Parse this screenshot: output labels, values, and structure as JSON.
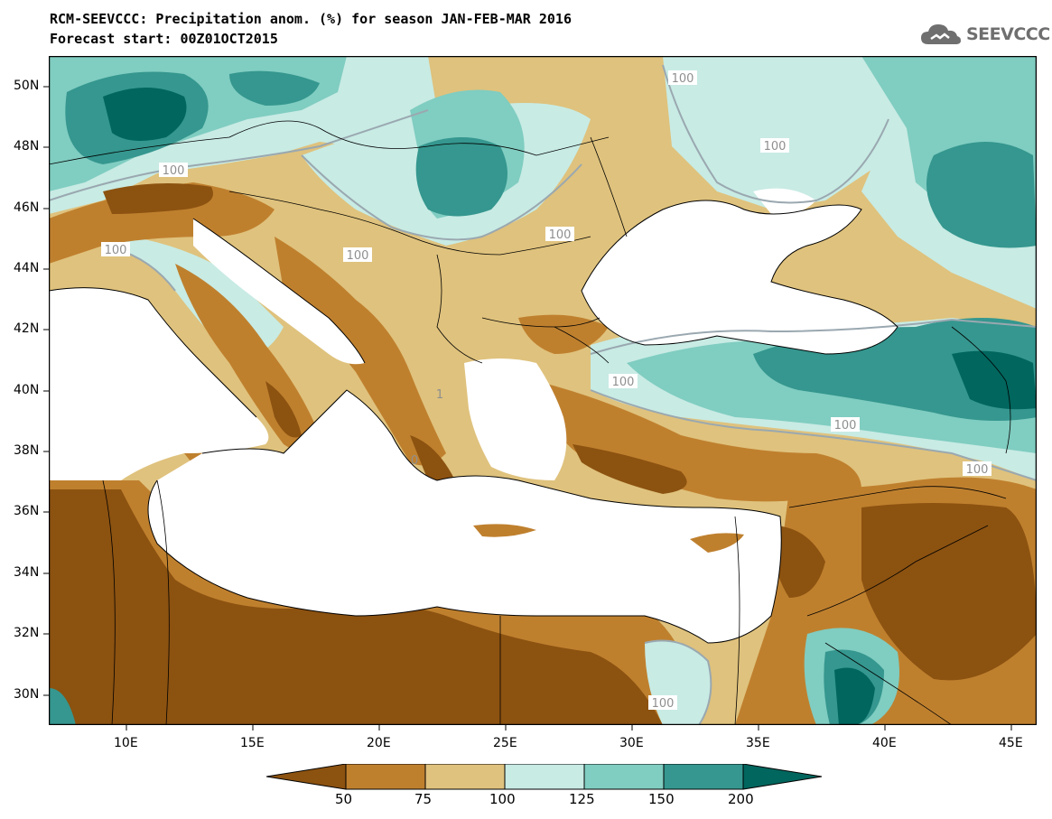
{
  "title": {
    "line1": "RCM-SEEVCCC: Precipitation anom. (%) for season JAN-FEB-MAR 2016",
    "line2": "Forecast start: 00Z01OCT2015"
  },
  "logo": {
    "text": "SEEVCCC",
    "icon": "cloud-icon"
  },
  "axes": {
    "lat_ticks": [
      "50N",
      "48N",
      "46N",
      "44N",
      "42N",
      "40N",
      "38N",
      "36N",
      "34N",
      "32N",
      "30N"
    ],
    "lon_ticks": [
      "10E",
      "15E",
      "20E",
      "25E",
      "30E",
      "35E",
      "40E",
      "45E"
    ]
  },
  "contour_labels": [
    "100",
    "100",
    "100",
    "100",
    "100",
    "100",
    "100",
    "100",
    "100",
    "100",
    "100",
    "1",
    "0"
  ],
  "legend": {
    "labels": [
      "50",
      "75",
      "100",
      "125",
      "150",
      "200"
    ],
    "colors": [
      "#8c5210",
      "#bf802e",
      "#dfc27d",
      "#c8ebe4",
      "#80cdc1",
      "#35978f",
      "#01665e"
    ]
  },
  "map_colors": {
    "very_dry": "#8c5210",
    "dry": "#bf802e",
    "slightly_dry": "#dfc27d",
    "slightly_wet": "#c8ebe4",
    "wet": "#80cdc1",
    "very_wet": "#35978f",
    "extreme_wet": "#01665e",
    "sea": "#ffffff"
  }
}
